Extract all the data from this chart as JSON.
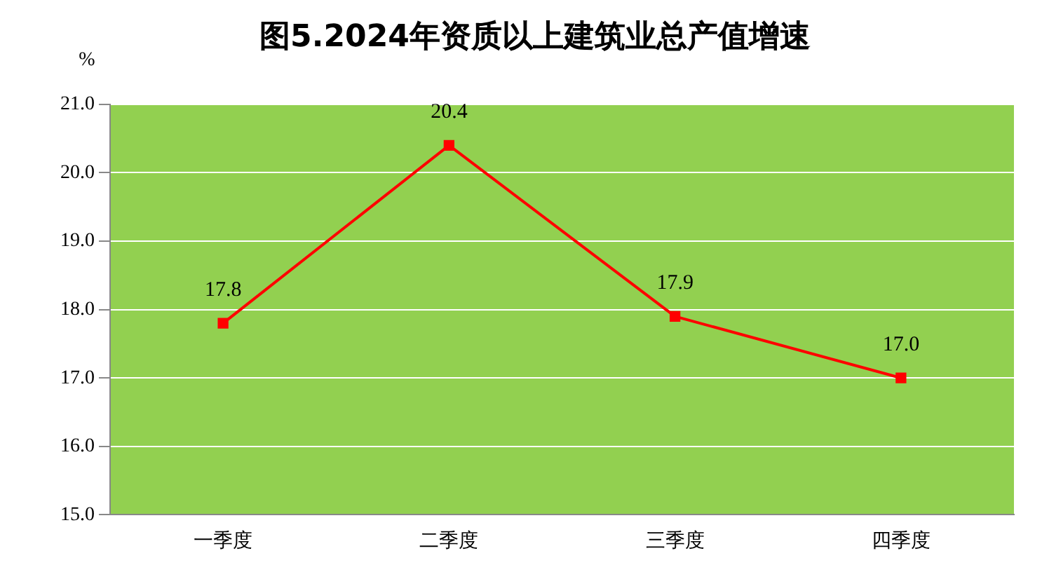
{
  "chart_data": {
    "type": "line",
    "title": "图5.2024年资质以上建筑业总产值增速",
    "ylabel": "%",
    "categories": [
      "一季度",
      "二季度",
      "三季度",
      "四季度"
    ],
    "series": [
      {
        "color": "#ff0000",
        "values": [
          17.8,
          20.4,
          17.9,
          17.0
        ],
        "value_labels": [
          "17.8",
          "20.4",
          "17.9",
          "17.0"
        ]
      }
    ],
    "ylim": [
      15,
      21
    ],
    "yticks": [
      {
        "value": 15,
        "label": "15.0"
      },
      {
        "value": 16,
        "label": "16.0"
      },
      {
        "value": 17,
        "label": "17.0"
      },
      {
        "value": 18,
        "label": "18.0"
      },
      {
        "value": 19,
        "label": "19.0"
      },
      {
        "value": 20,
        "label": "20.0"
      },
      {
        "value": 21,
        "label": "21.0"
      }
    ],
    "grid": "y",
    "legend": false,
    "marker": "square",
    "line_style": "solid"
  }
}
